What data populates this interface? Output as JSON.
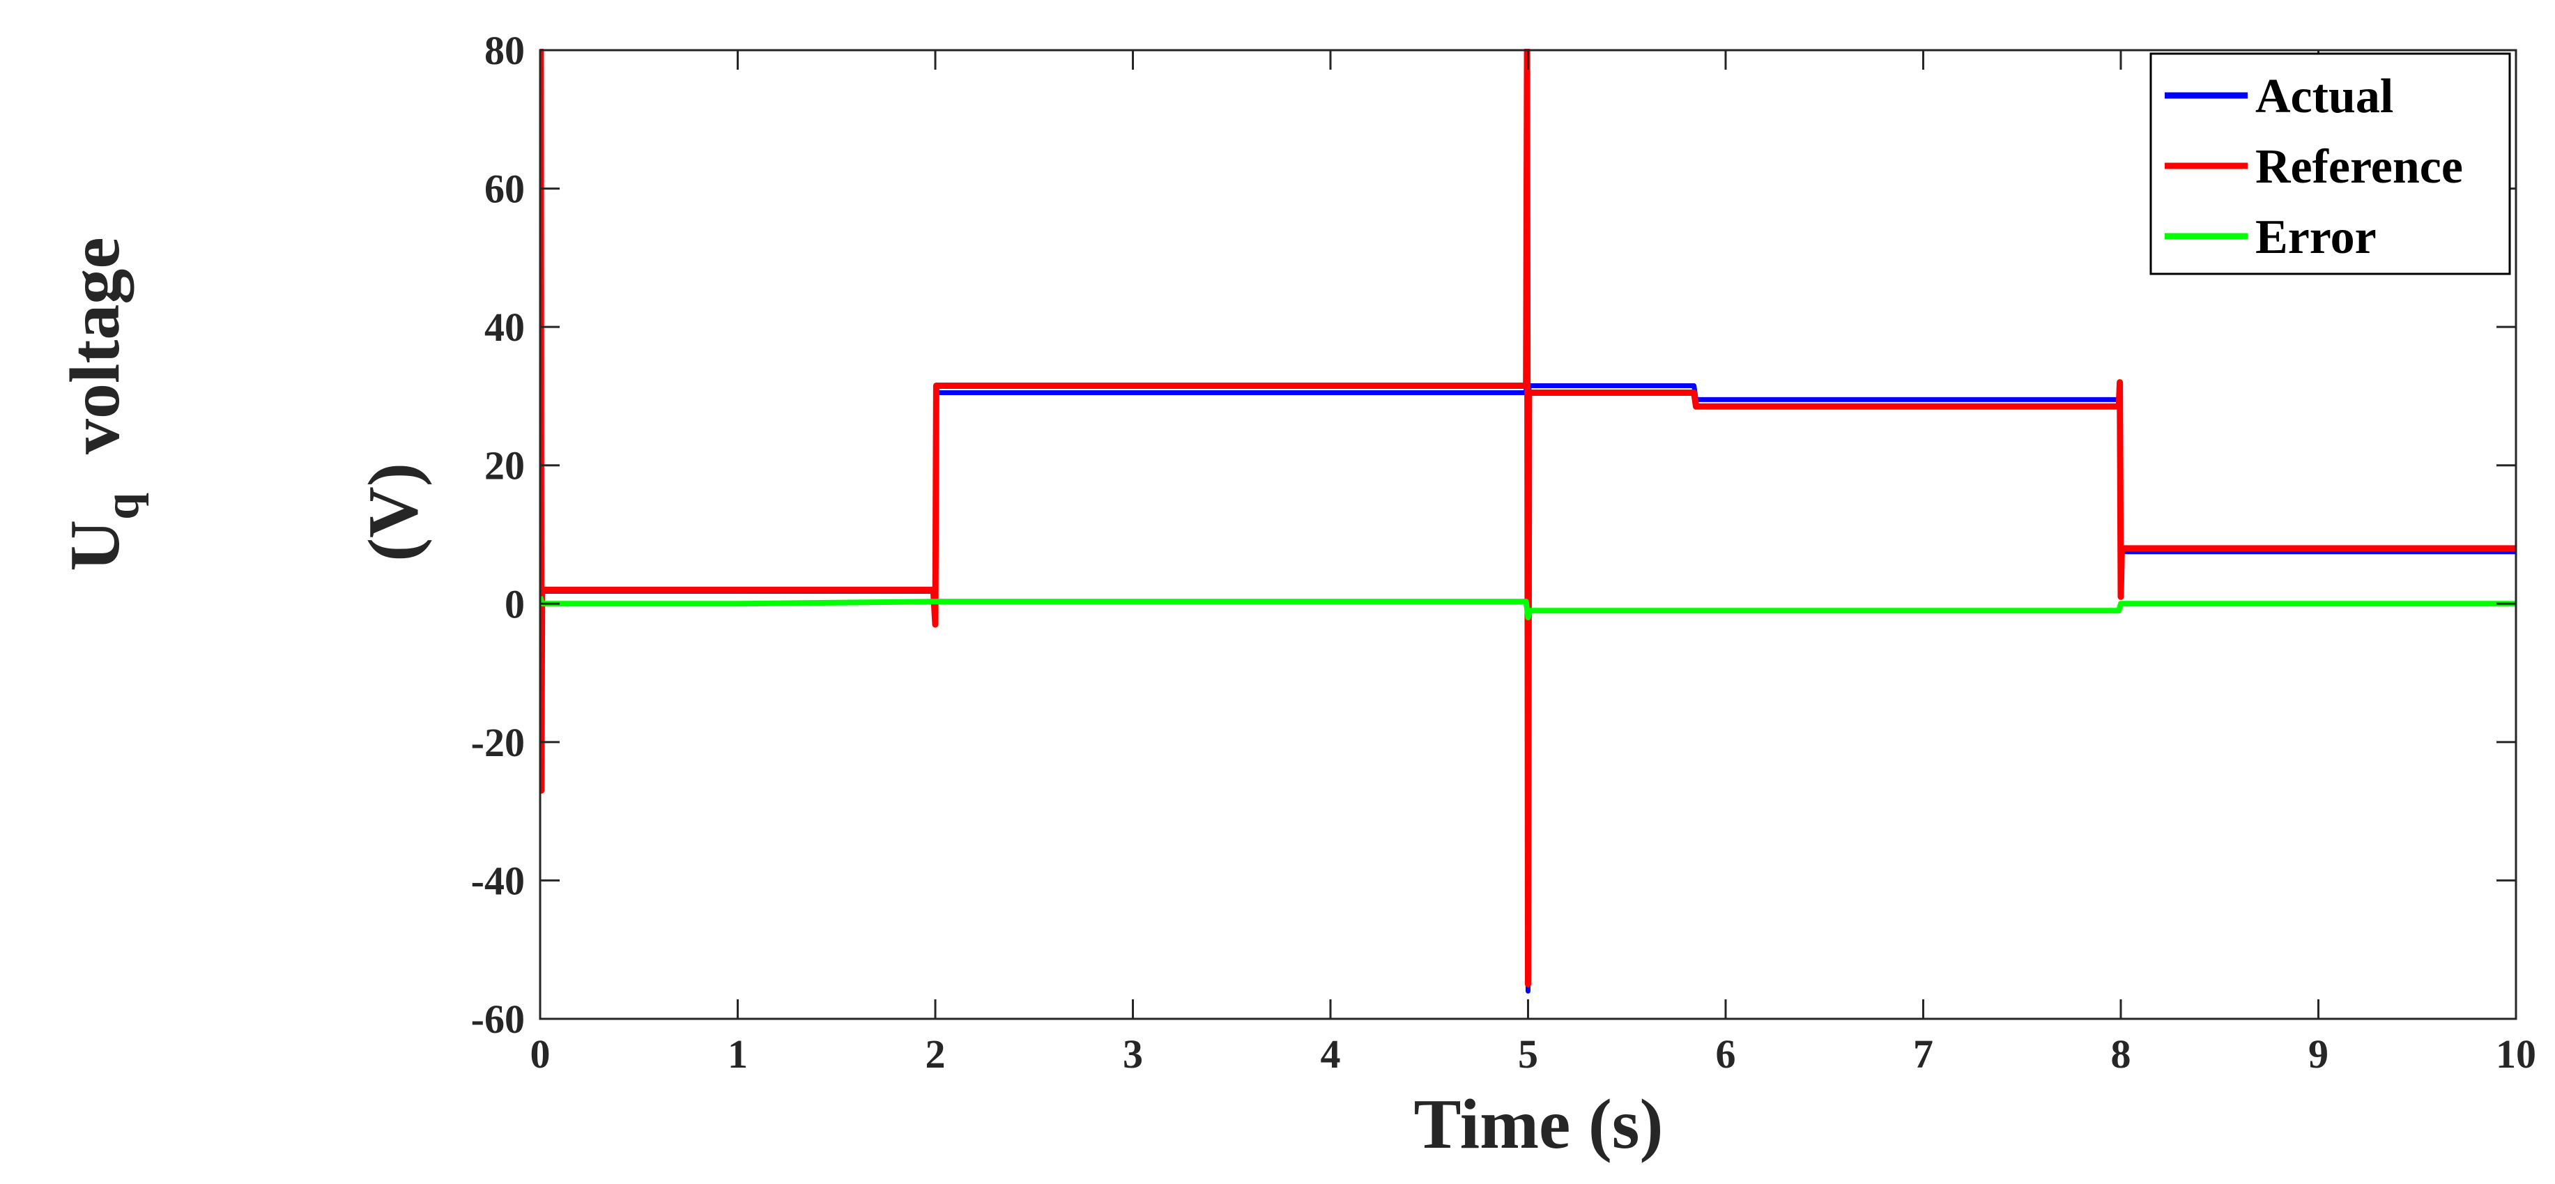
{
  "chart_data": {
    "type": "line",
    "xlabel": "Time (s)",
    "ylabel": {
      "base": "U",
      "subscript": "q",
      "word": "voltage",
      "unit": "(V)"
    },
    "xlim": [
      0,
      10
    ],
    "ylim": [
      -60,
      80
    ],
    "xticks": [
      0,
      1,
      2,
      3,
      4,
      5,
      6,
      7,
      8,
      9,
      10
    ],
    "yticks": [
      -60,
      -40,
      -20,
      0,
      20,
      40,
      60,
      80
    ],
    "grid": false,
    "legend_position": "top-right",
    "series": [
      {
        "name": "Actual",
        "color": "#0000ff",
        "x": [
          0,
          0.003,
          0.006,
          0.01,
          0.02,
          0.5,
          1.0,
          1.5,
          1.99,
          2.0,
          2.005,
          2.02,
          3.0,
          4.0,
          4.99,
          4.995,
          5.0,
          5.005,
          5.02,
          5.5,
          5.84,
          5.85,
          7.0,
          7.99,
          7.995,
          8.0,
          8.005,
          8.02,
          9.0,
          10.0
        ],
        "y": [
          0,
          80,
          -27,
          2,
          1.8,
          1.8,
          1.8,
          1.8,
          1.8,
          1.8,
          30.5,
          30.5,
          30.5,
          30.5,
          30.5,
          80,
          -56,
          31.5,
          31.5,
          31.5,
          31.5,
          29.5,
          29.5,
          29.5,
          31,
          1,
          7.5,
          7.5,
          7.5,
          7.5
        ]
      },
      {
        "name": "Reference",
        "color": "#ff0000",
        "x": [
          0,
          0.003,
          0.006,
          0.01,
          0.02,
          0.5,
          1.0,
          1.5,
          1.99,
          2.0,
          2.005,
          2.02,
          3.0,
          4.0,
          4.99,
          4.995,
          5.0,
          5.005,
          5.02,
          5.5,
          5.84,
          5.85,
          7.0,
          7.99,
          7.995,
          8.0,
          8.005,
          8.02,
          9.0,
          10.0
        ],
        "y": [
          0,
          80,
          -27,
          2,
          2,
          2,
          2,
          2,
          2,
          -3,
          31.5,
          31.5,
          31.5,
          31.5,
          31.5,
          80,
          -55,
          30.5,
          30.5,
          30.5,
          30.5,
          28.5,
          28.5,
          28.5,
          32,
          1,
          8,
          8,
          8,
          8
        ]
      },
      {
        "name": "Error",
        "color": "#00ff00",
        "x": [
          0,
          0.01,
          1.0,
          2.0,
          3.0,
          4.0,
          4.99,
          5.0,
          5.01,
          6.0,
          7.0,
          7.99,
          8.0,
          8.01,
          9.0,
          10.0
        ],
        "y": [
          1,
          0,
          0,
          0.3,
          0.3,
          0.3,
          0.3,
          -2,
          -1,
          -1,
          -1,
          -1,
          0,
          0,
          0,
          0
        ]
      }
    ]
  }
}
